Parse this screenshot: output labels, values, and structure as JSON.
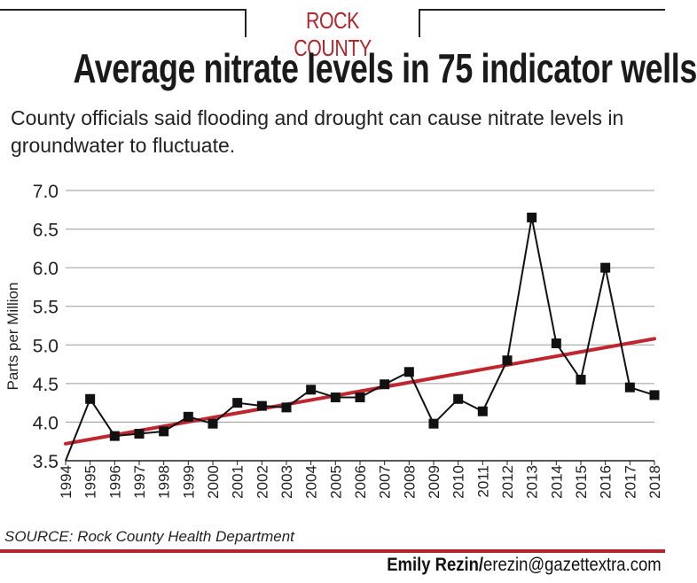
{
  "header": {
    "kicker": "ROCK COUNTY",
    "title": "Average nitrate levels in 75 indicator wells",
    "subtitle": "County officials said flooding and drought can cause nitrate levels in groundwater to fluctuate."
  },
  "footer": {
    "source": "SOURCE: Rock County Health Department",
    "credit_name": "Emily Rezin/",
    "credit_email": "erezin@gazettextra.com"
  },
  "colors": {
    "accent": "#b3242b",
    "series": "#111111",
    "trendline": "#c0262d",
    "grid": "#9a9a9a"
  },
  "chart_data": {
    "type": "line",
    "title": "",
    "xlabel": "",
    "ylabel": "Parts per Million",
    "ylim": [
      3.5,
      7.0
    ],
    "yticks": [
      "3.5",
      "4.0",
      "4.5",
      "5.0",
      "5.5",
      "6.0",
      "6.5",
      "7.0"
    ],
    "grid": "horizontal",
    "markers": "square",
    "x": [
      "1994",
      "1995",
      "1996",
      "1997",
      "1998",
      "1999",
      "2000",
      "2001",
      "2002",
      "2003",
      "2004",
      "2005",
      "2006",
      "2007",
      "2008",
      "2009",
      "2010",
      "2011",
      "2012",
      "2013",
      "2014",
      "2015",
      "2016",
      "2017",
      "2018"
    ],
    "series": [
      {
        "values": [
          3.5,
          4.3,
          3.82,
          3.85,
          3.88,
          4.07,
          3.98,
          4.25,
          4.21,
          4.19,
          4.42,
          4.32,
          4.32,
          4.49,
          4.65,
          3.98,
          4.3,
          4.14,
          4.8,
          6.65,
          5.02,
          4.55,
          6.0,
          4.45,
          4.35
        ]
      }
    ],
    "trendline": {
      "start": [
        1994,
        3.72
      ],
      "end": [
        2018,
        5.08
      ]
    }
  }
}
